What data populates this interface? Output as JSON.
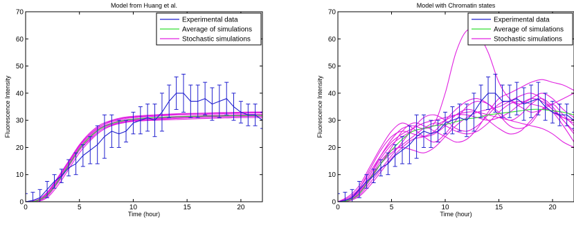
{
  "chart_data": [
    {
      "type": "line",
      "title": "Model from Huang et al.",
      "xlabel": "Time (hour)",
      "ylabel": "Fluorescence Intensity",
      "xlim": [
        0,
        22
      ],
      "ylim": [
        0,
        70
      ],
      "xticks": [
        0,
        5,
        10,
        15,
        20
      ],
      "yticks": [
        0,
        10,
        20,
        30,
        40,
        50,
        60,
        70
      ],
      "grid": false,
      "legend_position": "top-right",
      "legend": [
        "Experimental data",
        "Average of simulations",
        "Stochastic simulations"
      ],
      "colors": {
        "experimental": "#1f1fcf",
        "average": "#33dd33",
        "stochastic": "#e020e0"
      },
      "experimental": {
        "x": [
          0,
          0.67,
          1.33,
          2,
          2.67,
          3.33,
          4,
          4.67,
          5.33,
          6,
          6.67,
          7.33,
          8,
          8.67,
          9.33,
          10,
          10.67,
          11.33,
          12,
          12.67,
          13.33,
          14,
          14.67,
          15.33,
          16,
          16.67,
          17.33,
          18,
          18.67,
          19.33,
          20,
          20.67,
          21.33,
          22
        ],
        "y": [
          0,
          0.5,
          1.5,
          4.5,
          7.5,
          9.5,
          12.5,
          14,
          17,
          19,
          21,
          24,
          26,
          25,
          26,
          29,
          30,
          31,
          30,
          33,
          37,
          40,
          40,
          37,
          37,
          38,
          36,
          37,
          38,
          35,
          33,
          32,
          32,
          30
        ],
        "err": [
          3,
          3,
          3,
          3,
          2.5,
          2.5,
          3,
          4,
          4,
          5,
          7,
          8,
          6,
          5,
          4,
          4,
          5,
          5,
          6,
          7,
          6,
          6,
          7,
          6,
          6,
          6,
          6,
          6,
          6,
          5,
          4,
          4,
          4,
          3
        ]
      },
      "average": {
        "x": [
          0,
          1,
          2,
          3,
          4,
          5,
          6,
          7,
          8,
          9,
          10,
          11,
          12,
          13,
          14,
          15,
          16,
          17,
          18,
          19,
          20,
          21,
          22
        ],
        "y": [
          0,
          0.3,
          2.5,
          7.5,
          13.5,
          19.5,
          24,
          27,
          28.8,
          29.8,
          30.4,
          30.8,
          31,
          31.2,
          31.3,
          31.4,
          31.5,
          31.6,
          31.6,
          31.7,
          31.7,
          31.8,
          31.8
        ]
      },
      "stochastic": [
        {
          "x": [
            0,
            1,
            2,
            3,
            4,
            5,
            6,
            7,
            8,
            9,
            10,
            12,
            14,
            16,
            18,
            20,
            22
          ],
          "y": [
            0,
            0.2,
            2,
            7,
            13,
            19,
            23.5,
            27,
            28.5,
            29.5,
            30,
            30.5,
            31,
            31.3,
            31.5,
            31.7,
            31.8
          ]
        },
        {
          "x": [
            0,
            1,
            2,
            3,
            4,
            5,
            6,
            7,
            8,
            9,
            10,
            12,
            14,
            16,
            18,
            20,
            22
          ],
          "y": [
            0,
            0.5,
            3,
            8.5,
            14.5,
            20.5,
            25,
            28,
            29.5,
            30.5,
            31,
            31.5,
            32,
            32.2,
            32.4,
            32.6,
            32.7
          ]
        },
        {
          "x": [
            0,
            1,
            2,
            3,
            4,
            5,
            6,
            7,
            8,
            9,
            10,
            12,
            14,
            16,
            18,
            20,
            22
          ],
          "y": [
            0,
            0.1,
            1.5,
            6,
            12,
            18,
            22.5,
            26,
            28,
            29,
            29.6,
            30,
            30.3,
            30.6,
            30.8,
            31,
            31
          ]
        },
        {
          "x": [
            0,
            1,
            2,
            3,
            4,
            5,
            6,
            7,
            8,
            9,
            10,
            12,
            14,
            16,
            18,
            20,
            22
          ],
          "y": [
            0,
            0.4,
            3.5,
            9,
            15,
            21,
            25.5,
            28.5,
            30,
            31,
            31.5,
            32,
            32.4,
            32.6,
            32.8,
            33,
            33.1
          ]
        },
        {
          "x": [
            0,
            1,
            2,
            3,
            4,
            5,
            6,
            7,
            8,
            9,
            10,
            12,
            14,
            16,
            18,
            20,
            22
          ],
          "y": [
            0,
            0.3,
            2.2,
            7.5,
            13.5,
            19.5,
            24,
            27.2,
            28.9,
            29.9,
            30.3,
            30.8,
            31.1,
            31.4,
            31.6,
            31.8,
            31.9
          ]
        },
        {
          "x": [
            0,
            1,
            2,
            3,
            4,
            5,
            6,
            7,
            8,
            9,
            10,
            12,
            14,
            16,
            18,
            20,
            22
          ],
          "y": [
            0,
            0.2,
            2.8,
            8,
            14,
            20,
            24.5,
            27.5,
            29,
            30,
            30.5,
            31,
            31.4,
            31.7,
            31.9,
            32.1,
            32.2
          ]
        },
        {
          "x": [
            0,
            1,
            2,
            3,
            4,
            5,
            6,
            7,
            8,
            9,
            10,
            12,
            14,
            16,
            18,
            20,
            22
          ],
          "y": [
            0,
            0.6,
            2.5,
            7,
            13,
            19,
            23,
            26.5,
            28.2,
            29.2,
            29.8,
            30.3,
            30.7,
            31,
            31.2,
            31.4,
            31.5
          ]
        },
        {
          "x": [
            0,
            1,
            2,
            3,
            4,
            5,
            6,
            7,
            8,
            9,
            10,
            12,
            14,
            16,
            18,
            20,
            22
          ],
          "y": [
            0,
            0.3,
            3.2,
            8.8,
            15,
            20.8,
            25,
            28,
            29.8,
            30.8,
            31.2,
            31.8,
            32.2,
            32.5,
            32.7,
            32.9,
            33
          ]
        }
      ]
    },
    {
      "type": "line",
      "title": "Model with Chromatin states",
      "xlabel": "Time (hour)",
      "ylabel": "Fluorescence Intensity",
      "xlim": [
        0,
        22
      ],
      "ylim": [
        0,
        70
      ],
      "xticks": [
        0,
        5,
        10,
        15,
        20
      ],
      "yticks": [
        0,
        10,
        20,
        30,
        40,
        50,
        60,
        70
      ],
      "grid": false,
      "legend_position": "top-right",
      "legend": [
        "Experimental data",
        "Average of simulations",
        "Stochastic simulations"
      ],
      "colors": {
        "experimental": "#1f1fcf",
        "average": "#33dd33",
        "stochastic": "#e020e0"
      },
      "experimental": {
        "x": [
          0,
          0.67,
          1.33,
          2,
          2.67,
          3.33,
          4,
          4.67,
          5.33,
          6,
          6.67,
          7.33,
          8,
          8.67,
          9.33,
          10,
          10.67,
          11.33,
          12,
          12.67,
          13.33,
          14,
          14.67,
          15.33,
          16,
          16.67,
          17.33,
          18,
          18.67,
          19.33,
          20,
          20.67,
          21.33,
          22
        ],
        "y": [
          0,
          0.5,
          1.5,
          4.5,
          7.5,
          9.5,
          12.5,
          14,
          17,
          19,
          21,
          24,
          26,
          25,
          26,
          29,
          30,
          31,
          30,
          33,
          37,
          40,
          40,
          37,
          37,
          38,
          36,
          37,
          38,
          35,
          33,
          32,
          32,
          30
        ],
        "err": [
          3,
          3,
          3,
          3,
          2.5,
          2.5,
          3,
          4,
          4,
          5,
          7,
          8,
          6,
          5,
          4,
          4,
          5,
          5,
          6,
          7,
          6,
          6,
          7,
          6,
          6,
          6,
          6,
          6,
          6,
          5,
          4,
          4,
          4,
          3
        ]
      },
      "average": {
        "x": [
          0,
          1,
          2,
          3,
          4,
          5,
          6,
          7,
          8,
          9,
          10,
          11,
          12,
          13,
          14,
          15,
          16,
          17,
          18,
          19,
          20,
          21,
          22
        ],
        "y": [
          0,
          0.5,
          3,
          8.5,
          14,
          19,
          23,
          26,
          27,
          28,
          28.5,
          29.5,
          30.5,
          31,
          32,
          32.5,
          33,
          33.5,
          34,
          34,
          33.5,
          33,
          32
        ]
      },
      "stochastic": [
        {
          "x": [
            0,
            1,
            2,
            3,
            4,
            5,
            6,
            7,
            8,
            9,
            10,
            11,
            12,
            13,
            14,
            15,
            16,
            17,
            18,
            19,
            20,
            21,
            22
          ],
          "y": [
            0,
            1,
            4,
            10,
            17,
            23,
            27,
            28,
            27,
            29,
            40,
            55,
            63,
            62,
            55,
            44,
            38,
            36,
            38,
            40,
            38,
            34,
            31
          ]
        },
        {
          "x": [
            0,
            1,
            2,
            3,
            4,
            5,
            6,
            7,
            8,
            9,
            10,
            11,
            12,
            13,
            14,
            15,
            16,
            17,
            18,
            19,
            20,
            21,
            22
          ],
          "y": [
            0,
            0.5,
            3,
            8,
            14,
            20,
            26,
            29,
            28,
            26,
            24,
            22,
            23,
            27,
            33,
            38,
            40,
            42,
            44,
            45,
            44,
            43,
            41
          ]
        },
        {
          "x": [
            0,
            1,
            2,
            3,
            4,
            5,
            6,
            7,
            8,
            9,
            10,
            11,
            12,
            13,
            14,
            15,
            16,
            17,
            18,
            19,
            20,
            21,
            22
          ],
          "y": [
            0,
            2,
            6,
            13,
            20,
            26,
            29,
            27,
            24,
            22,
            25,
            30,
            35,
            37,
            36,
            33,
            30,
            32,
            36,
            38,
            35,
            30,
            26
          ]
        },
        {
          "x": [
            0,
            1,
            2,
            3,
            4,
            5,
            6,
            7,
            8,
            9,
            10,
            11,
            12,
            13,
            14,
            15,
            16,
            17,
            18,
            19,
            20,
            21,
            22
          ],
          "y": [
            0,
            0.3,
            2,
            6,
            11,
            16,
            20,
            23,
            24,
            26,
            30,
            34,
            37,
            38,
            36,
            32,
            28,
            27,
            29,
            34,
            36,
            32,
            28
          ]
        },
        {
          "x": [
            0,
            1,
            2,
            3,
            4,
            5,
            6,
            7,
            8,
            9,
            10,
            11,
            12,
            13,
            14,
            15,
            16,
            17,
            18,
            19,
            20,
            21,
            22
          ],
          "y": [
            0,
            1,
            5,
            12,
            19,
            24,
            26,
            25,
            24,
            25,
            28,
            32,
            34,
            33,
            30,
            27,
            25,
            26,
            30,
            34,
            33,
            28,
            22
          ]
        },
        {
          "x": [
            0,
            1,
            2,
            3,
            4,
            5,
            6,
            7,
            8,
            9,
            10,
            11,
            12,
            13,
            14,
            15,
            16,
            17,
            18,
            19,
            20,
            21,
            22
          ],
          "y": [
            0,
            0.5,
            2.5,
            7,
            12,
            17,
            22,
            27,
            31,
            32,
            30,
            27,
            26,
            28,
            32,
            36,
            37,
            35,
            33,
            34,
            36,
            38,
            40
          ]
        },
        {
          "x": [
            0,
            1,
            2,
            3,
            4,
            5,
            6,
            7,
            8,
            9,
            10,
            11,
            12,
            13,
            14,
            15,
            16,
            17,
            18,
            19,
            20,
            21,
            22
          ],
          "y": [
            0,
            0.8,
            4,
            10,
            16,
            21,
            24,
            26,
            27,
            28,
            30,
            32,
            33,
            33,
            32,
            31,
            30,
            29,
            28,
            27,
            25,
            22,
            20
          ]
        },
        {
          "x": [
            0,
            1,
            2,
            3,
            4,
            5,
            6,
            7,
            8,
            9,
            10,
            11,
            12,
            13,
            14,
            15,
            16,
            17,
            18,
            19,
            20,
            21,
            22
          ],
          "y": [
            0,
            0.4,
            3,
            9,
            15,
            19,
            20,
            19,
            18,
            20,
            24,
            28,
            31,
            33,
            34,
            35,
            37,
            39,
            40,
            38,
            34,
            30,
            25
          ]
        },
        {
          "x": [
            0,
            1,
            2,
            3,
            4,
            5,
            6,
            7,
            8,
            9,
            10,
            11,
            12,
            13,
            14,
            15,
            16,
            17,
            18,
            19,
            20,
            21,
            22
          ],
          "y": [
            0,
            1.5,
            5,
            11,
            17,
            22,
            25,
            27,
            29,
            30,
            31,
            32,
            32,
            31,
            30,
            31,
            33,
            36,
            38,
            37,
            34,
            31,
            29
          ]
        },
        {
          "x": [
            0,
            1,
            2,
            3,
            4,
            5,
            6,
            7,
            8,
            9,
            10,
            11,
            12,
            13,
            14,
            15,
            16,
            17,
            18,
            19,
            20,
            21,
            22
          ],
          "y": [
            0,
            0.6,
            3.5,
            9,
            14,
            18,
            21,
            24,
            27,
            29,
            28,
            26,
            25,
            26,
            29,
            33,
            36,
            37,
            36,
            35,
            33,
            31,
            30
          ]
        }
      ]
    }
  ]
}
